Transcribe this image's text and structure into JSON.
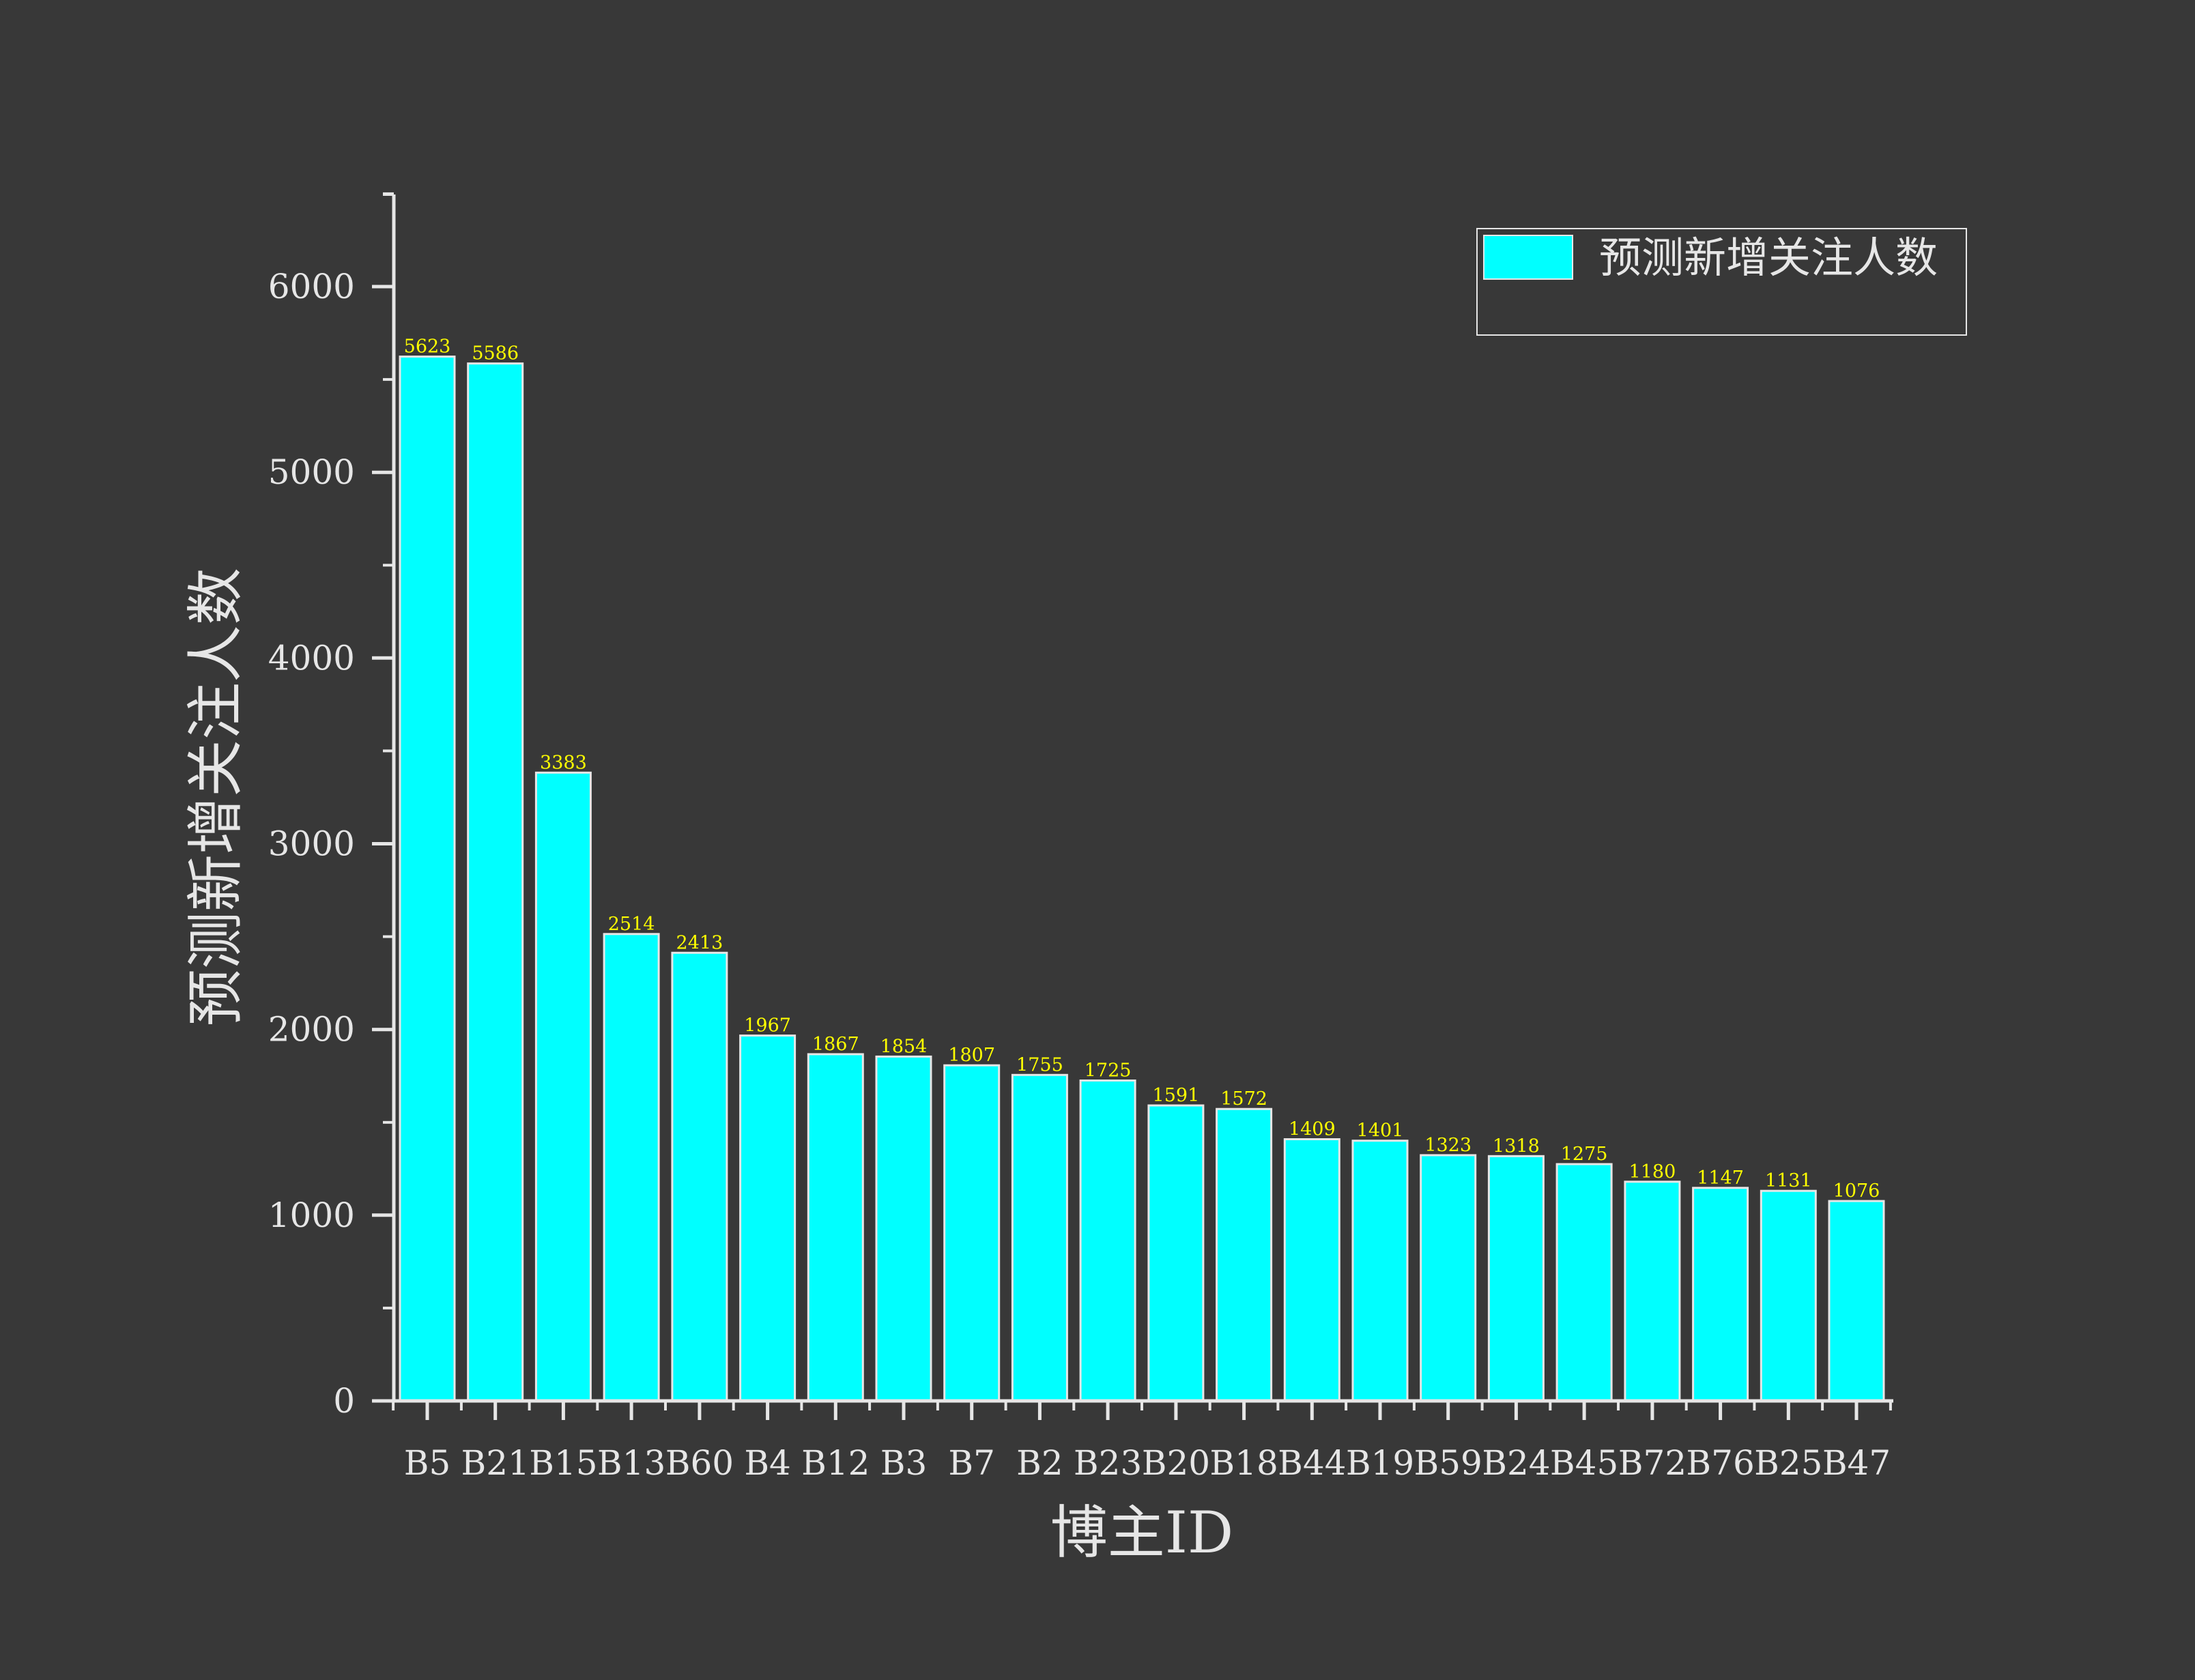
{
  "chart_data": {
    "type": "bar",
    "xlabel": "博主ID",
    "ylabel": "预测新增关注人数",
    "categories": [
      "B5",
      "B21",
      "B15",
      "B13",
      "B60",
      "B4",
      "B12",
      "B3",
      "B7",
      "B2",
      "B23",
      "B20",
      "B18",
      "B44",
      "B19",
      "B59",
      "B24",
      "B45",
      "B72",
      "B76",
      "B25",
      "B47"
    ],
    "series": [
      {
        "name": "预测新增关注人数",
        "values": [
          5623,
          5586,
          3383,
          2514,
          2413,
          1967,
          1867,
          1854,
          1807,
          1755,
          1725,
          1591,
          1572,
          1409,
          1401,
          1323,
          1318,
          1275,
          1180,
          1147,
          1131,
          1076
        ]
      }
    ],
    "ylim": [
      0,
      6500
    ],
    "yticks": [
      0,
      1000,
      2000,
      3000,
      4000,
      5000,
      6000
    ],
    "data_labels": true,
    "grid": false,
    "legend_position": "top-right",
    "colors": {
      "background": "#383838",
      "bar_fill": "#00ffff",
      "bar_edge": "#e6e6e6",
      "axis": "#e6e6e6",
      "value_label": "#ffff00",
      "text": "#e6e6e6"
    }
  }
}
